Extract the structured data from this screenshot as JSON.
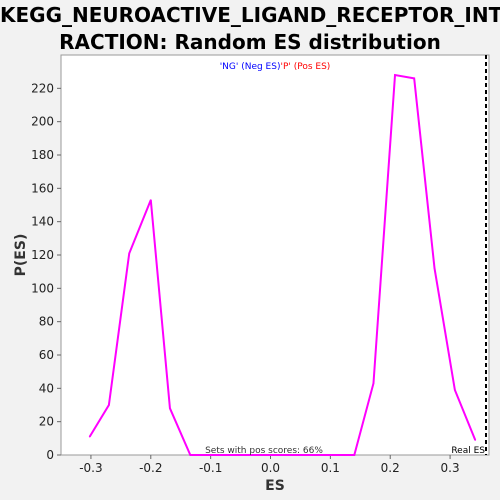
{
  "chart_data": {
    "type": "line",
    "title_line1": "KEGG_NEUROACTIVE_LIGAND_RECEPTOR_INTE",
    "title_line2": "RACTION: Random ES distribution",
    "xlabel": "ES",
    "ylabel": "P(ES)",
    "xlim": [
      -0.35,
      0.365
    ],
    "ylim": [
      0,
      240
    ],
    "xticks": [
      -0.3,
      -0.2,
      -0.1,
      0.0,
      0.1,
      0.2,
      0.3
    ],
    "xtick_labels": [
      "-0.3",
      "-0.2",
      "-0.1",
      "0.0",
      "0.1",
      "0.2",
      "0.3"
    ],
    "yticks": [
      0,
      20,
      40,
      60,
      80,
      100,
      120,
      140,
      160,
      180,
      200,
      220
    ],
    "ytick_labels": [
      "0",
      "20",
      "40",
      "60",
      "80",
      "100",
      "120",
      "140",
      "160",
      "180",
      "200",
      "220"
    ],
    "grid": false,
    "series": [
      {
        "color": "#ff00ff",
        "x": [
          -0.302,
          -0.27,
          -0.236,
          -0.2,
          -0.168,
          -0.134,
          -0.1,
          -0.066,
          -0.03,
          0.005,
          0.04,
          0.075,
          0.11,
          0.14,
          0.172,
          0.208,
          0.24,
          0.274,
          0.308,
          0.342
        ],
        "y": [
          11,
          30,
          121,
          153,
          28,
          0,
          0,
          0,
          0,
          0,
          0,
          0,
          0,
          0,
          43,
          228,
          226,
          112,
          39,
          9
        ]
      }
    ],
    "real_es": {
      "x": 0.36,
      "label": "Real ES",
      "color": "#000000"
    },
    "legend": {
      "neg": {
        "text": "'NG' (Neg ES)",
        "color": "#0000ff"
      },
      "pos": {
        "text": "'P' (Pos ES)",
        "color": "#ff0000"
      }
    },
    "annotation": "Sets with pos scores: 66%"
  }
}
